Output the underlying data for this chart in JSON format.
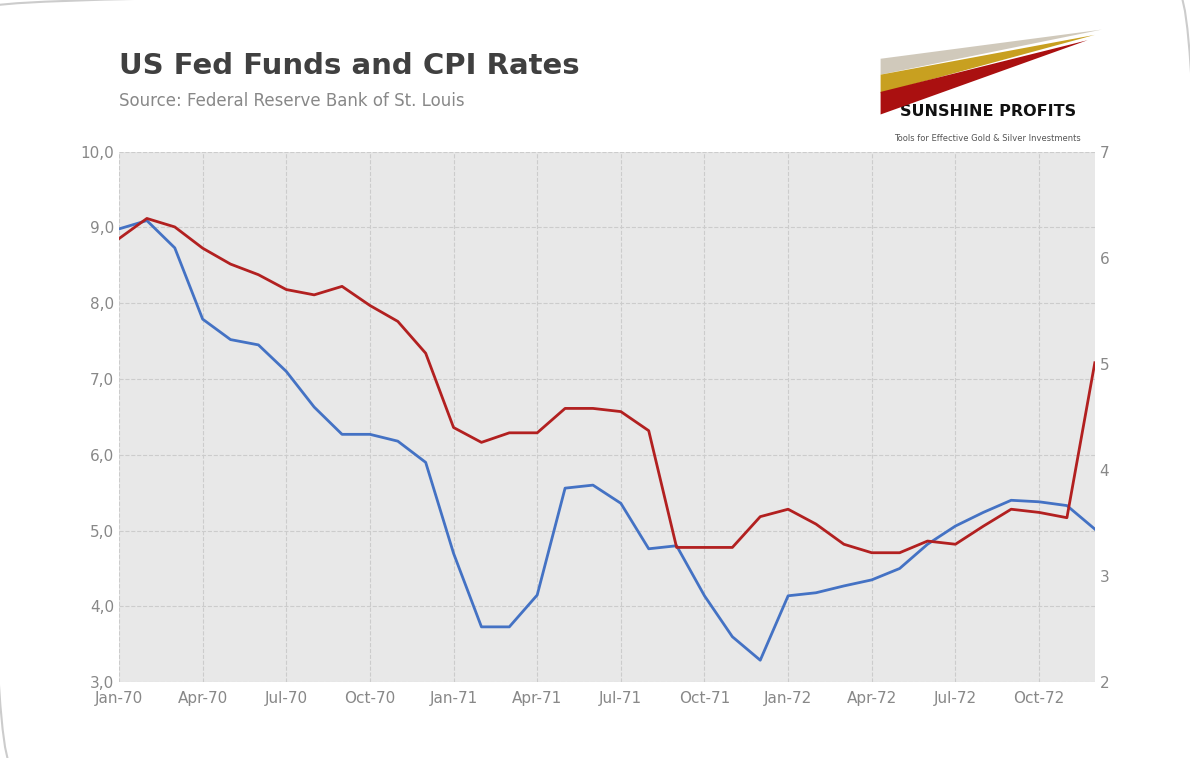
{
  "title": "US Fed Funds and CPI Rates",
  "source": "Source: Federal Reserve Bank of St. Louis",
  "title_fontsize": 21,
  "source_fontsize": 12,
  "background_color": "#e8e8e8",
  "outer_background": "#ffffff",
  "left_ylim": [
    3.0,
    10.0
  ],
  "right_ylim": [
    2.0,
    7.0
  ],
  "left_yticks": [
    3.0,
    4.0,
    5.0,
    6.0,
    7.0,
    8.0,
    9.0,
    10.0
  ],
  "right_yticks": [
    2,
    3,
    4,
    5,
    6,
    7
  ],
  "x_labels": [
    "Jan-70",
    "Apr-70",
    "Jul-70",
    "Oct-70",
    "Jan-71",
    "Apr-71",
    "Jul-71",
    "Oct-71",
    "Jan-72",
    "Apr-72",
    "Jul-72",
    "Oct-72"
  ],
  "n_months": 36,
  "fed_funds_y": [
    8.98,
    9.09,
    8.73,
    7.79,
    7.52,
    7.45,
    7.1,
    6.63,
    6.27,
    6.27,
    6.18,
    5.9,
    4.7,
    3.73,
    3.73,
    4.15,
    5.56,
    5.6,
    5.36,
    4.76,
    4.8,
    4.14,
    3.6,
    3.29,
    4.14,
    4.18,
    4.27,
    4.35,
    4.5,
    4.82,
    5.06,
    5.24,
    5.4,
    5.38,
    5.33,
    5.02
  ],
  "cpi_y": [
    6.18,
    6.37,
    6.29,
    6.09,
    5.94,
    5.84,
    5.7,
    5.65,
    5.73,
    5.55,
    5.4,
    5.1,
    4.4,
    4.26,
    4.35,
    4.35,
    4.58,
    4.58,
    4.55,
    4.37,
    3.27,
    3.27,
    3.27,
    3.56,
    3.63,
    3.49,
    3.3,
    3.22,
    3.22,
    3.33,
    3.3,
    3.47,
    3.63,
    3.6,
    3.55,
    5.01
  ],
  "fed_color": "#4472c4",
  "cpi_color": "#b22020",
  "grid_color": "#cccccc",
  "tick_color": "#888888",
  "title_color": "#404040",
  "source_color": "#888888",
  "logo_text": "SUNSHINE PROFITS",
  "logo_subtext": "Tools for Effective Gold & Silver Investments"
}
